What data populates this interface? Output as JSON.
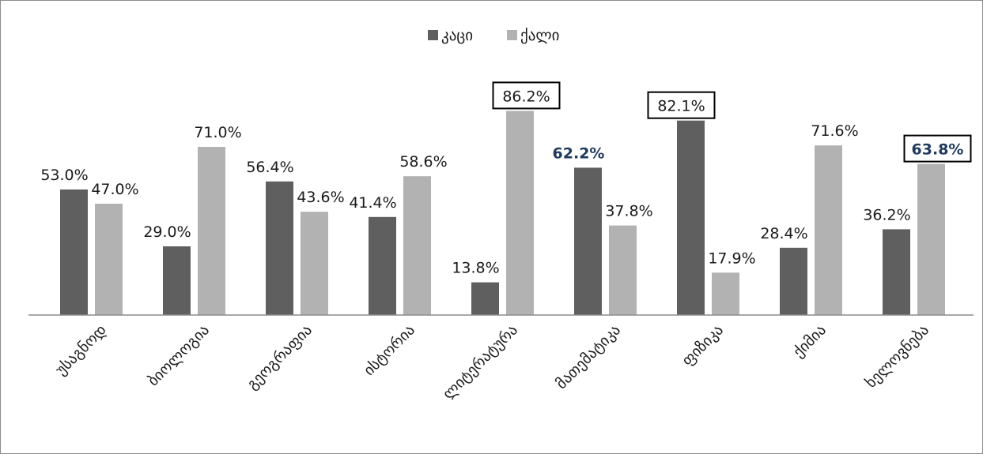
{
  "chart_data": {
    "type": "bar",
    "categories": [
      "უსაგნოდ",
      "ბიოლოგია",
      "გეოგრაფია",
      "ისტორია",
      "ლიტერატურა",
      "მათემატიკა",
      "ფიზიკა",
      "ქიმია",
      "ხელოვნება"
    ],
    "series": [
      {
        "name": "კაცი",
        "color": "#5f5f5f",
        "values": [
          53.0,
          29.0,
          56.4,
          41.4,
          13.8,
          62.2,
          82.1,
          28.4,
          36.2
        ],
        "labels": [
          "53.0%",
          "29.0%",
          "56.4%",
          "41.4%",
          "13.8%",
          "62.2%",
          "82.1%",
          "28.4%",
          "36.2%"
        ]
      },
      {
        "name": "ქალი",
        "color": "#b2b2b2",
        "values": [
          47.0,
          71.0,
          43.6,
          58.6,
          86.2,
          37.8,
          17.9,
          71.6,
          63.8
        ],
        "labels": [
          "47.0%",
          "71.0%",
          "43.6%",
          "58.6%",
          "86.2%",
          "37.8%",
          "17.9%",
          "71.6%",
          "63.8%"
        ]
      }
    ],
    "highlights": {
      "boxed": [
        [
          1,
          4
        ],
        [
          0,
          6
        ],
        [
          1,
          8
        ]
      ],
      "bold": [
        [
          0,
          5
        ],
        [
          1,
          8
        ]
      ]
    },
    "ylim": [
      0,
      100
    ],
    "legend_position": "top-center",
    "grid": false
  }
}
